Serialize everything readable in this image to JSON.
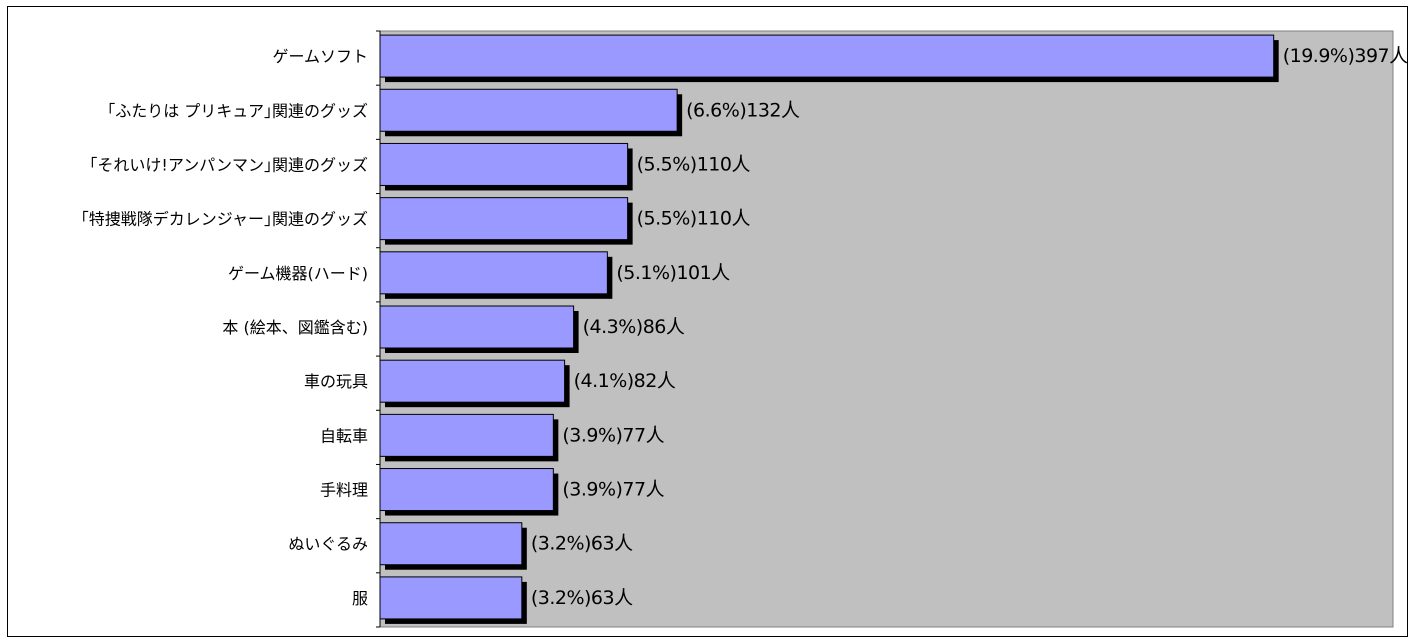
{
  "chart_data": {
    "type": "bar",
    "orientation": "horizontal",
    "categories": [
      "ゲームソフト",
      "｢ふたりは プリキュア｣関連のグッズ",
      "｢それいけ!アンパンマン｣関連のグッズ",
      "｢特捜戦隊デカレンジャー｣関連のグッズ",
      "ゲーム機器(ハード)",
      "本 (絵本、図鑑含む)",
      "車の玩具",
      "自転車",
      "手料理",
      "ぬいぐるみ",
      "服"
    ],
    "values": [
      397,
      132,
      110,
      110,
      101,
      86,
      82,
      77,
      77,
      63,
      63
    ],
    "percents": [
      "19.9%",
      "6.6%",
      "5.5%",
      "5.5%",
      "5.1%",
      "4.3%",
      "4.1%",
      "3.9%",
      "3.9%",
      "3.2%",
      "3.2%"
    ],
    "value_labels": [
      "(19.9%)397人",
      "(6.6%)132人",
      "(5.5%)110人",
      "(5.5%)110人",
      "(5.1%)101人",
      "(4.3%)86人",
      "(4.1%)82人",
      "(3.9%)77人",
      "(3.9%)77人",
      "(3.2%)63人",
      "(3.2%)63人"
    ],
    "xlim": [
      0,
      450
    ],
    "colors": {
      "bar": "#9999ff",
      "bar_shadow": "#000000",
      "plot_background": "#c0c0c0"
    },
    "grid": false,
    "legend": "none"
  }
}
